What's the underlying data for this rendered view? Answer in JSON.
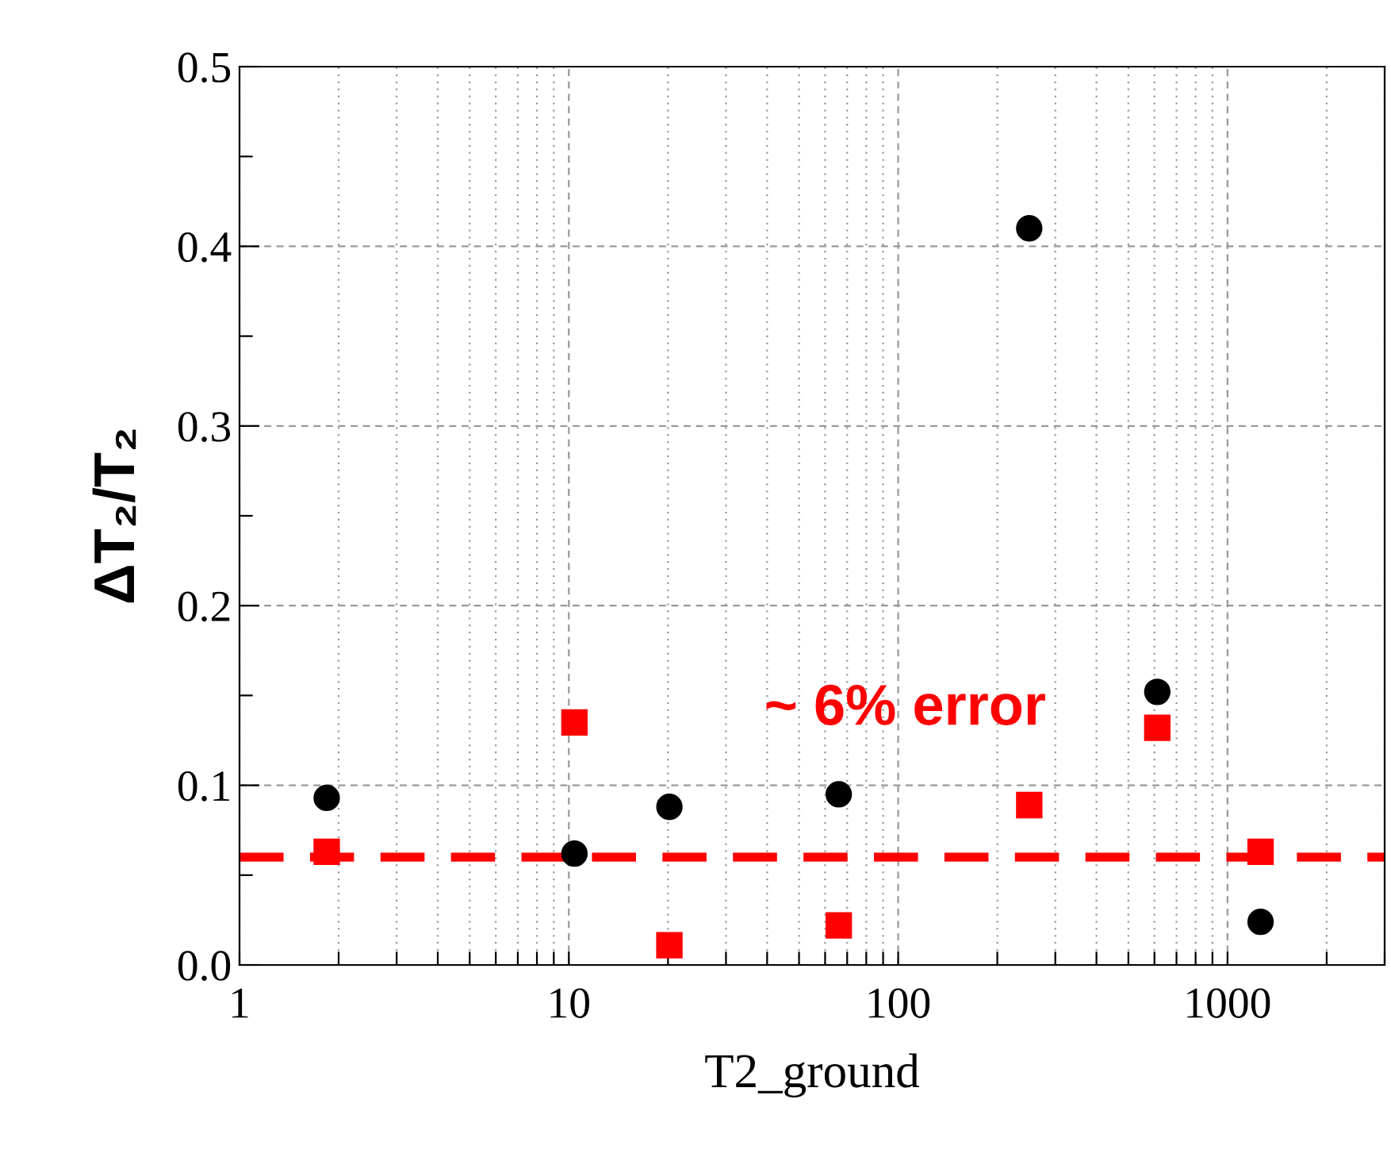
{
  "chart_data": {
    "type": "scatter",
    "xlabel": "T2_ground",
    "ylabel": "ΔT₂/T₂",
    "log": "x",
    "xlim": [
      1,
      3000
    ],
    "ylim": [
      0,
      0.5
    ],
    "xticks": [
      1,
      {
        "value": 2,
        "label": null
      },
      {
        "value": 3,
        "label": null
      },
      {
        "value": 4,
        "label": null
      },
      {
        "value": 5,
        "label": null
      },
      {
        "value": 6,
        "label": null
      },
      {
        "value": 7,
        "label": null
      },
      {
        "value": 8,
        "label": null
      },
      {
        "value": 9,
        "label": null
      },
      10,
      {
        "value": 20,
        "label": null
      },
      {
        "value": 30,
        "label": null
      },
      {
        "value": 40,
        "label": null
      },
      {
        "value": 50,
        "label": null
      },
      {
        "value": 60,
        "label": null
      },
      {
        "value": 70,
        "label": null
      },
      {
        "value": 80,
        "label": null
      },
      {
        "value": 90,
        "label": null
      },
      100,
      {
        "value": 200,
        "label": null
      },
      {
        "value": 300,
        "label": null
      },
      {
        "value": 400,
        "label": null
      },
      {
        "value": 500,
        "label": null
      },
      {
        "value": 600,
        "label": null
      },
      {
        "value": 700,
        "label": null
      },
      {
        "value": 800,
        "label": null
      },
      {
        "value": 900,
        "label": null
      },
      1000,
      {
        "value": 2000,
        "label": null
      },
      {
        "value": 3000,
        "label": null
      }
    ],
    "yticks": [
      {
        "value": 0,
        "label": "0.0"
      },
      {
        "value": 0.05,
        "label": null
      },
      0.1,
      {
        "value": 0.15,
        "label": null
      },
      0.2,
      {
        "value": 0.25,
        "label": null
      },
      0.3,
      {
        "value": 0.35,
        "label": null
      },
      0.4,
      {
        "value": 0.45,
        "label": null
      },
      0.5
    ],
    "grid": true,
    "series": [
      {
        "color": "#000000",
        "marker": "circle",
        "x": [
          1.84,
          10.4,
          20.2,
          66,
          250,
          612,
          1260
        ],
        "values": [
          0.093,
          0.062,
          0.088,
          0.095,
          0.41,
          0.152,
          0.024
        ]
      },
      {
        "color": "#ff0000",
        "marker": "square",
        "x": [
          1.84,
          10.4,
          20.2,
          66,
          250,
          612,
          1260
        ],
        "values": [
          0.063,
          0.135,
          0.011,
          0.022,
          0.089,
          0.132,
          0.063
        ]
      }
    ],
    "ref_lines": [
      {
        "axis": "y",
        "value": 0.06,
        "label": "~ 6% error",
        "color": "#ff0000",
        "line_style": "dashed"
      }
    ]
  }
}
